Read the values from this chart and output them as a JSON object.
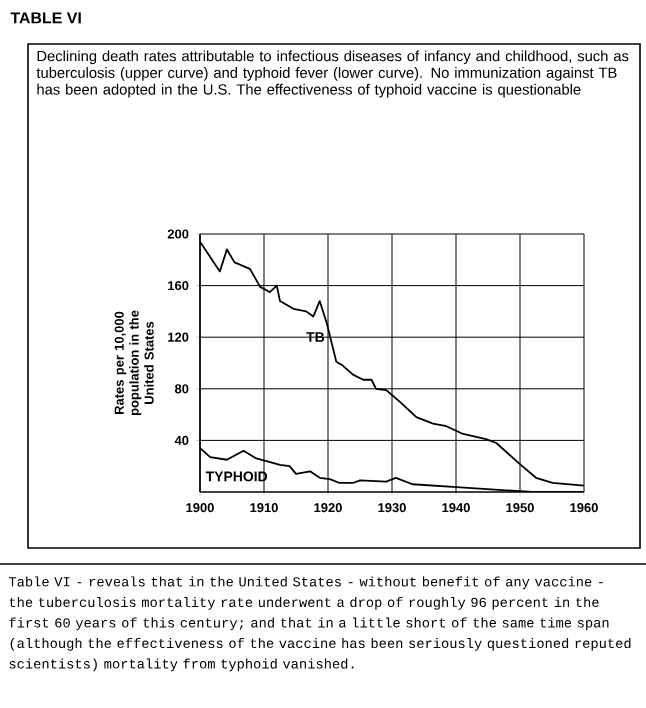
{
  "chart_data": {
    "type": "line",
    "title": "TABLE VI",
    "subtitle": "Declining death rates attributable to infectious diseases of infancy and childhood, such as tuberculosis (upper curve) and typhoid fever (lower curve). No immunization against TB has been adopted in the U.S. The effectiveness of typhoid vaccine is questionable",
    "ylabel": "Rates per 10,000 population in the United States",
    "annotations": [
      "Table VI - reveals that in the United States - without benefit of any vaccine - the tuberculosis mortality rate underwent a drop of roughly 96 percent in the first 60 years of this century; and that in a little short of the same time span (although the effectiveness of the vaccine has been seriously questioned reputed scientists) mortality from typhoid vanished."
    ],
    "series": [
      {
        "name": "TB",
        "color": "#000000",
        "x": [
          1900,
          1903.1,
          1904.2,
          1905.4,
          1907.8,
          1909.4,
          1910.9,
          1912,
          1912.5,
          1914.6,
          1916.6,
          1917.7,
          1918.7,
          1919.8,
          1920.6,
          1921.3,
          1922.3,
          1923.9,
          1925.5,
          1926.8,
          1927.5,
          1929.1,
          1931.2,
          1933.8,
          1936.4,
          1938.5,
          1941.1,
          1944.7,
          1946.3,
          1949.9,
          1952.5,
          1955.1,
          1960
        ],
        "values": [
          194,
          171,
          188,
          178,
          173,
          159,
          155,
          160,
          148,
          142,
          140,
          136,
          148,
          131,
          115,
          101,
          98,
          91,
          87,
          87,
          80,
          79,
          70,
          58,
          53,
          51,
          45,
          41,
          38,
          22,
          11,
          7,
          5
        ]
      },
      {
        "name": "TYPHOID",
        "color": "#000000",
        "x": [
          1900,
          1901.6,
          1904.2,
          1906.8,
          1908.8,
          1910.4,
          1912.5,
          1914,
          1915,
          1917.2,
          1918.7,
          1920.3,
          1921.8,
          1923.9,
          1925,
          1929.1,
          1930.6,
          1933.2,
          1939.5,
          1945.7,
          1951.9,
          1960
        ],
        "values": [
          34,
          27,
          25,
          32,
          26,
          24,
          21,
          20,
          14,
          16,
          11,
          10,
          7,
          7,
          9,
          8,
          11,
          6,
          4,
          2,
          0,
          0
        ]
      }
    ],
    "xlim": [
      1900,
      1960
    ],
    "xticks": [
      1900,
      1910,
      1920,
      1930,
      1940,
      1950,
      1960
    ],
    "ylim": [
      0,
      200
    ],
    "yticks": [
      40,
      80,
      120,
      160,
      200
    ],
    "grid": true,
    "marker": "none",
    "line_style": "solid"
  }
}
